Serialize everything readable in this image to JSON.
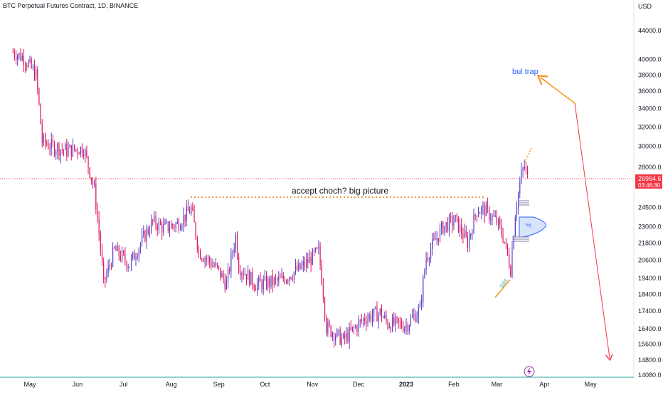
{
  "header": {
    "symbol_title": "BTC Perpetual Futures Contract, 1D, BINANCE"
  },
  "price_axis": {
    "currency": "USD",
    "current_price": "26964.6",
    "countdown": "03:46:30"
  },
  "annotations": {
    "main_text": "accept  choch? big picture",
    "trap_text": "bul trap",
    "fvg_text": "fvg",
    "sss_text": "SSS"
  },
  "colors": {
    "up_candle": "#5b3fc8",
    "down_candle": "#e0195c",
    "arrow": "#f5921b",
    "dotted_level": "#e07b00",
    "current_price": "#f23645",
    "fvg_fill": "#d6e3fb",
    "fvg_stroke": "#2962ff",
    "bottom_line": "#26a69a",
    "trap_text": "#2962ff"
  },
  "chart_data": {
    "type": "candlestick",
    "title": "BTC Perpetual Futures Contract, 1D, BINANCE",
    "x_ticks": [
      "May",
      "Jun",
      "Jul",
      "Aug",
      "Sep",
      "Oct",
      "Nov",
      "Dec",
      "2023",
      "Feb",
      "Mar",
      "Apr",
      "May"
    ],
    "y_ticks": [
      "44000.0",
      "40000.0",
      "38000.0",
      "36000.0",
      "34000.0",
      "32000.0",
      "30000.0",
      "28000.0",
      "24500.0",
      "23000.0",
      "21800.0",
      "20600.0",
      "19400.0",
      "18400.0",
      "17400.0",
      "16400.0",
      "15600.0",
      "14800.0",
      "14080.0"
    ],
    "y_scale": "log",
    "anchors": [
      {
        "date": "2022-04-20",
        "close": 41000
      },
      {
        "date": "2022-04-27",
        "close": 40200
      },
      {
        "date": "2022-05-05",
        "close": 38000
      },
      {
        "date": "2022-05-09",
        "close": 30500
      },
      {
        "date": "2022-05-15",
        "close": 30000
      },
      {
        "date": "2022-05-25",
        "close": 29600
      },
      {
        "date": "2022-06-05",
        "close": 29800
      },
      {
        "date": "2022-06-12",
        "close": 26000
      },
      {
        "date": "2022-06-18",
        "close": 19000
      },
      {
        "date": "2022-06-25",
        "close": 21300
      },
      {
        "date": "2022-07-05",
        "close": 20300
      },
      {
        "date": "2022-07-20",
        "close": 23400
      },
      {
        "date": "2022-07-27",
        "close": 22900
      },
      {
        "date": "2022-08-05",
        "close": 23200
      },
      {
        "date": "2022-08-14",
        "close": 24400
      },
      {
        "date": "2022-08-19",
        "close": 21200
      },
      {
        "date": "2022-08-31",
        "close": 20000
      },
      {
        "date": "2022-09-06",
        "close": 19000
      },
      {
        "date": "2022-09-12",
        "close": 22300
      },
      {
        "date": "2022-09-14",
        "close": 20200
      },
      {
        "date": "2022-09-25",
        "close": 19000
      },
      {
        "date": "2022-10-10",
        "close": 19200
      },
      {
        "date": "2022-10-25",
        "close": 20100
      },
      {
        "date": "2022-11-05",
        "close": 21200
      },
      {
        "date": "2022-11-08",
        "close": 18500
      },
      {
        "date": "2022-11-10",
        "close": 16500
      },
      {
        "date": "2022-11-21",
        "close": 15800
      },
      {
        "date": "2022-12-05",
        "close": 17000
      },
      {
        "date": "2022-12-15",
        "close": 17300
      },
      {
        "date": "2022-12-20",
        "close": 16700
      },
      {
        "date": "2023-01-01",
        "close": 16600
      },
      {
        "date": "2023-01-10",
        "close": 17500
      },
      {
        "date": "2023-01-14",
        "close": 20800
      },
      {
        "date": "2023-01-25",
        "close": 23000
      },
      {
        "date": "2023-02-02",
        "close": 23500
      },
      {
        "date": "2023-02-10",
        "close": 21800
      },
      {
        "date": "2023-02-16",
        "close": 24300
      },
      {
        "date": "2023-02-21",
        "close": 24300
      },
      {
        "date": "2023-03-01",
        "close": 23400
      },
      {
        "date": "2023-03-05",
        "close": 22300
      },
      {
        "date": "2023-03-10",
        "close": 20000
      },
      {
        "date": "2023-03-13",
        "close": 24100
      },
      {
        "date": "2023-03-17",
        "close": 27300
      },
      {
        "date": "2023-03-19",
        "close": 28100
      },
      {
        "date": "2023-03-21",
        "close": 27000
      }
    ]
  }
}
